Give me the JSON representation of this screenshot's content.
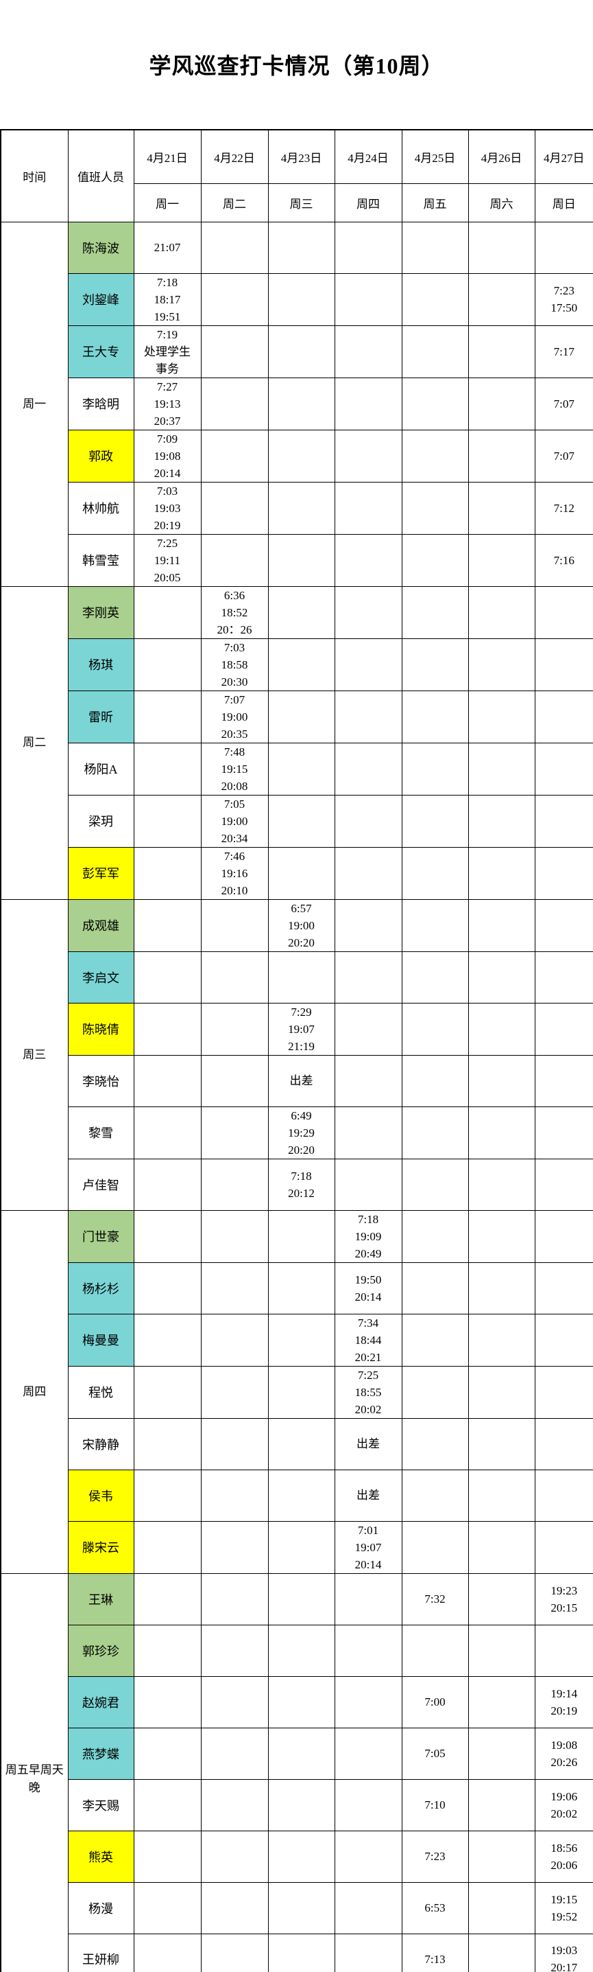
{
  "title": "学风巡查打卡情况（第10周）",
  "header": {
    "time": "时间",
    "staff": "值班人员",
    "dates": [
      "4月21日",
      "4月22日",
      "4月23日",
      "4月24日",
      "4月25日",
      "4月26日",
      "4月27日"
    ],
    "weekdays": [
      "周一",
      "周二",
      "周三",
      "周四",
      "周五",
      "周六",
      "周日"
    ]
  },
  "colors": {
    "green": "#A9D08E",
    "cyan": "#7BD5D5",
    "yellow": "#FFFF00",
    "white": "#FFFFFF"
  },
  "groups": [
    {
      "label": "周一",
      "rows": [
        {
          "name": "陈海波",
          "color": "green",
          "cells": [
            "21:07",
            "",
            "",
            "",
            "",
            "",
            ""
          ]
        },
        {
          "name": "刘鋆峰",
          "color": "cyan",
          "cells": [
            "7:18\n18:17\n19:51",
            "",
            "",
            "",
            "",
            "",
            "7:23\n17:50"
          ]
        },
        {
          "name": "王大专",
          "color": "cyan",
          "cells": [
            "7:19\n处理学生\n事务",
            "",
            "",
            "",
            "",
            "",
            "7:17"
          ]
        },
        {
          "name": "李晗明",
          "color": "white",
          "cells": [
            "7:27\n19:13\n20:37",
            "",
            "",
            "",
            "",
            "",
            "7:07"
          ]
        },
        {
          "name": "郭政",
          "color": "yellow",
          "cells": [
            "7:09\n19:08\n20:14",
            "",
            "",
            "",
            "",
            "",
            "7:07"
          ]
        },
        {
          "name": "林帅航",
          "color": "white",
          "cells": [
            "7:03\n19:03\n20:19",
            "",
            "",
            "",
            "",
            "",
            "7:12"
          ]
        },
        {
          "name": "韩雪莹",
          "color": "white",
          "cells": [
            "7:25\n19:11\n20:05",
            "",
            "",
            "",
            "",
            "",
            "7:16"
          ]
        }
      ]
    },
    {
      "label": "周二",
      "rows": [
        {
          "name": "李刚英",
          "color": "green",
          "cells": [
            "",
            "6:36\n18:52\n20：26",
            "",
            "",
            "",
            "",
            ""
          ]
        },
        {
          "name": "杨琪",
          "color": "cyan",
          "cells": [
            "",
            "7:03\n18:58\n20:30",
            "",
            "",
            "",
            "",
            ""
          ]
        },
        {
          "name": "雷昕",
          "color": "cyan",
          "cells": [
            "",
            "7:07\n19:00\n20:35",
            "",
            "",
            "",
            "",
            ""
          ]
        },
        {
          "name": "杨阳A",
          "color": "white",
          "cells": [
            "",
            "7:48\n19:15\n20:08",
            "",
            "",
            "",
            "",
            ""
          ]
        },
        {
          "name": "梁玥",
          "color": "white",
          "cells": [
            "",
            "7:05\n19:00\n20:34",
            "",
            "",
            "",
            "",
            ""
          ]
        },
        {
          "name": "彭军军",
          "color": "yellow",
          "cells": [
            "",
            "7:46\n19:16\n20:10",
            "",
            "",
            "",
            "",
            ""
          ]
        }
      ]
    },
    {
      "label": "周三",
      "rows": [
        {
          "name": "成观雄",
          "color": "green",
          "cells": [
            "",
            "",
            "6:57\n19:00\n20:20",
            "",
            "",
            "",
            ""
          ]
        },
        {
          "name": "李启文",
          "color": "cyan",
          "cells": [
            "",
            "",
            "",
            "",
            "",
            "",
            ""
          ]
        },
        {
          "name": "陈晓倩",
          "color": "yellow",
          "cells": [
            "",
            "",
            "7:29\n19:07\n21:19",
            "",
            "",
            "",
            ""
          ]
        },
        {
          "name": "李晓怡",
          "color": "white",
          "cells": [
            "",
            "",
            "出差",
            "",
            "",
            "",
            ""
          ]
        },
        {
          "name": "黎雪",
          "color": "white",
          "cells": [
            "",
            "",
            "6:49\n19:29\n20:20",
            "",
            "",
            "",
            ""
          ]
        },
        {
          "name": "卢佳智",
          "color": "white",
          "cells": [
            "",
            "",
            "7:18\n20:12",
            "",
            "",
            "",
            ""
          ]
        }
      ]
    },
    {
      "label": "周四",
      "rows": [
        {
          "name": "门世豪",
          "color": "green",
          "cells": [
            "",
            "",
            "",
            "7:18\n19:09\n20:49",
            "",
            "",
            ""
          ]
        },
        {
          "name": "杨杉杉",
          "color": "cyan",
          "cells": [
            "",
            "",
            "",
            "19:50\n20:14",
            "",
            "",
            ""
          ]
        },
        {
          "name": "梅曼曼",
          "color": "cyan",
          "cells": [
            "",
            "",
            "",
            "7:34\n18:44\n20:21",
            "",
            "",
            ""
          ]
        },
        {
          "name": "程悦",
          "color": "white",
          "cells": [
            "",
            "",
            "",
            "7:25\n18:55\n20:02",
            "",
            "",
            ""
          ]
        },
        {
          "name": "宋静静",
          "color": "white",
          "cells": [
            "",
            "",
            "",
            "出差",
            "",
            "",
            ""
          ]
        },
        {
          "name": "侯韦",
          "color": "yellow",
          "cells": [
            "",
            "",
            "",
            "出差",
            "",
            "",
            ""
          ]
        },
        {
          "name": "滕宋云",
          "color": "yellow",
          "cells": [
            "",
            "",
            "",
            "7:01\n19:07\n20:14",
            "",
            "",
            ""
          ]
        }
      ]
    },
    {
      "label": "周五早周天晚",
      "rows": [
        {
          "name": "王琳",
          "color": "green",
          "cells": [
            "",
            "",
            "",
            "",
            "7:32",
            "",
            "19:23\n20:15"
          ]
        },
        {
          "name": "郭珍珍",
          "color": "green",
          "cells": [
            "",
            "",
            "",
            "",
            "",
            "",
            ""
          ]
        },
        {
          "name": "赵婉君",
          "color": "cyan",
          "cells": [
            "",
            "",
            "",
            "",
            "7:00",
            "",
            "19:14\n20:19"
          ]
        },
        {
          "name": "燕梦蝶",
          "color": "cyan",
          "cells": [
            "",
            "",
            "",
            "",
            "7:05",
            "",
            "19:08\n20:26"
          ]
        },
        {
          "name": "李天赐",
          "color": "white",
          "cells": [
            "",
            "",
            "",
            "",
            "7:10",
            "",
            "19:06\n20:02"
          ]
        },
        {
          "name": "熊英",
          "color": "yellow",
          "cells": [
            "",
            "",
            "",
            "",
            "7:23",
            "",
            "18:56\n20:06"
          ]
        },
        {
          "name": "杨漫",
          "color": "white",
          "cells": [
            "",
            "",
            "",
            "",
            "6:53",
            "",
            "19:15\n19:52"
          ]
        },
        {
          "name": "王妍柳",
          "color": "white",
          "cells": [
            "",
            "",
            "",
            "",
            "7:13",
            "",
            "19:03\n20:17"
          ]
        }
      ]
    }
  ]
}
